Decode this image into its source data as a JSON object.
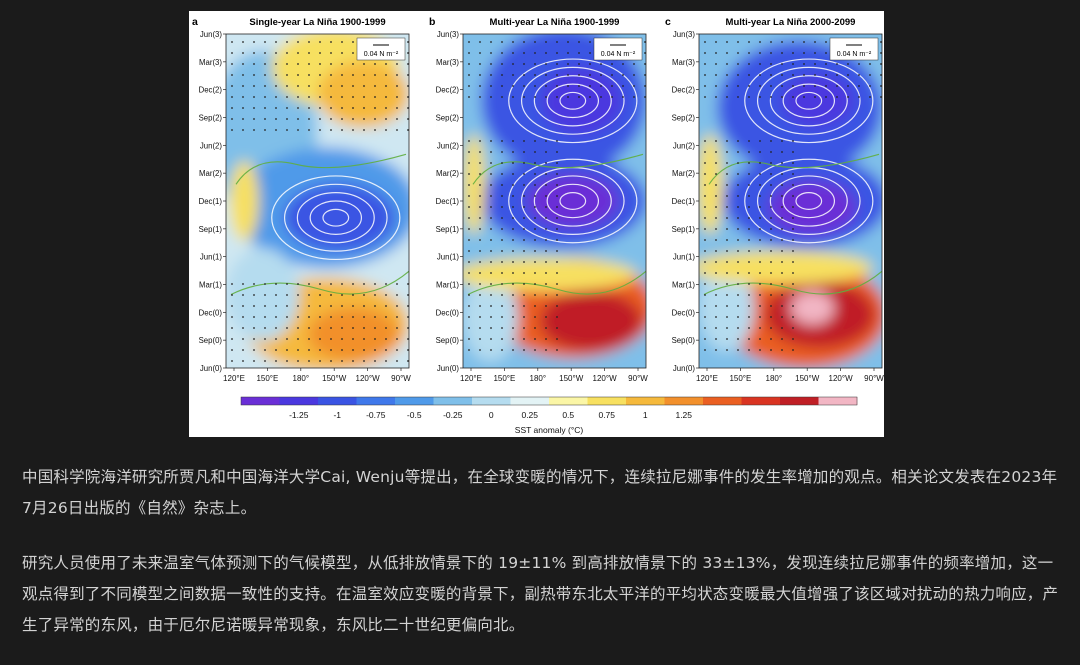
{
  "figure": {
    "panels": [
      {
        "letter": "a",
        "title": "Single-year La Niña 1900-1999"
      },
      {
        "letter": "b",
        "title": "Multi-year La Niña 1900-1999"
      },
      {
        "letter": "c",
        "title": "Multi-year La Niña 2000-2099"
      }
    ],
    "y_ticks": [
      "Jun(3)",
      "Mar(3)",
      "Dec(2)",
      "Sep(2)",
      "Jun(2)",
      "Mar(2)",
      "Dec(1)",
      "Sep(1)",
      "Jun(1)",
      "Mar(1)",
      "Dec(0)",
      "Sep(0)",
      "Jun(0)"
    ],
    "x_ticks": [
      "120°E",
      "150°E",
      "180°",
      "150°W",
      "120°W",
      "90°W"
    ],
    "wind_scale_label": "0.04 N m⁻²",
    "colorbar": {
      "label": "SST anomaly (°C)",
      "tick_labels": [
        "-1.25",
        "-1",
        "-0.75",
        "-0.5",
        "-0.25",
        "0",
        "0.25",
        "0.5",
        "0.75",
        "1",
        "1.25"
      ],
      "colors": [
        "#6a2fd6",
        "#4b38df",
        "#3a54e3",
        "#3f78ea",
        "#4f9ae9",
        "#7fbfe9",
        "#b5dcef",
        "#e3f3f5",
        "#fbf6a6",
        "#f7e060",
        "#f5b93c",
        "#f2902c",
        "#ea5f22",
        "#d93422",
        "#c01f25",
        "#f2b6c4"
      ]
    }
  },
  "paragraphs": [
    "中国科学院海洋研究所贾凡和中国海洋大学Cai, Wenju等提出，在全球变暖的情况下，连续拉尼娜事件的发生率增加的观点。相关论文发表在2023年7月26日出版的《自然》杂志上。",
    "研究人员使用了未来温室气体预测下的气候模型，从低排放情景下的 19±11% 到高排放情景下的 33±13%，发现连续拉尼娜事件的频率增加，这一观点得到了不同模型之间数据一致性的支持。在温室效应变暖的背景下，副热带东北太平洋的平均状态变暖最大值增强了该区域对扰动的热力响应，产生了异常的东风，由于厄尔尼诺暖异常现象，东风比二十世纪更偏向北。"
  ]
}
